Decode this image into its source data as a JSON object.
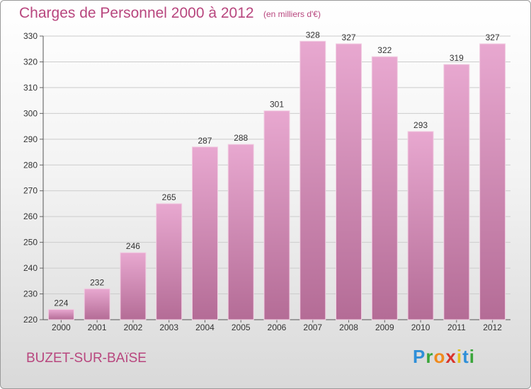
{
  "header": {
    "title": "Charges de Personnel 2000 à 2012",
    "subtitle": "(en milliers d'€)"
  },
  "footer": {
    "place": "BUZET-SUR-BAïSE",
    "logo_letters": [
      "P",
      "r",
      "o",
      "x",
      "i",
      "t",
      "i"
    ]
  },
  "colors": {
    "title": "#b8467e",
    "bar_top": "#e8a8d0",
    "bar_bottom": "#b46c96",
    "grid": "#cccccc"
  },
  "chart_data": {
    "type": "bar",
    "title": "Charges de Personnel 2000 à 2012",
    "subtitle": "(en milliers d'€)",
    "categories": [
      "2000",
      "2001",
      "2002",
      "2003",
      "2004",
      "2005",
      "2006",
      "2007",
      "2008",
      "2009",
      "2010",
      "2011",
      "2012"
    ],
    "values": [
      224,
      232,
      246,
      265,
      287,
      288,
      301,
      328,
      327,
      322,
      293,
      319,
      327
    ],
    "ylim": [
      220,
      330
    ],
    "yticks": [
      220,
      230,
      240,
      250,
      260,
      270,
      280,
      290,
      300,
      310,
      320,
      330
    ],
    "grid": true,
    "xlabel": "",
    "ylabel": ""
  }
}
